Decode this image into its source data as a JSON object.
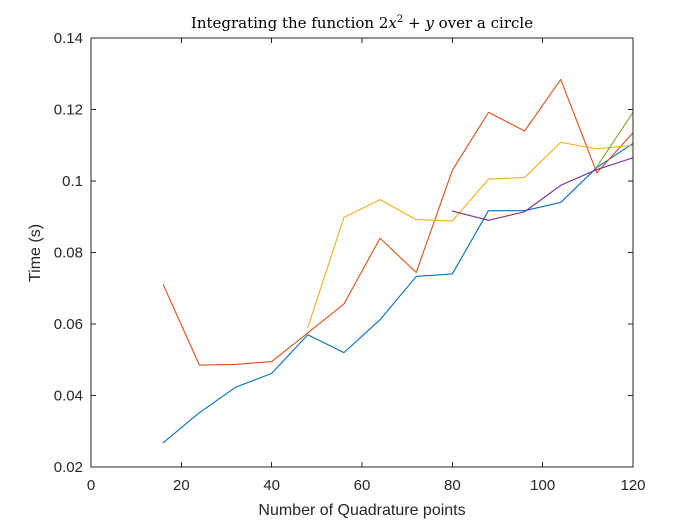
{
  "chart_data": {
    "type": "line",
    "title_parts": {
      "prefix": "Integrating the function ",
      "coef": "2",
      "var1": "x",
      "exp": "2",
      "op": " + ",
      "var2": "y",
      "suffix": " over a circle"
    },
    "xlabel": "Number of Quadrature points",
    "ylabel": "Time (s)",
    "xlim": [
      0,
      120
    ],
    "ylim": [
      0.02,
      0.14
    ],
    "xticks": [
      0,
      20,
      40,
      60,
      80,
      100,
      120
    ],
    "xtick_labels": [
      "0",
      "20",
      "40",
      "60",
      "80",
      "100",
      "120"
    ],
    "yticks": [
      0.02,
      0.04,
      0.06,
      0.08,
      0.1,
      0.12,
      0.14
    ],
    "ytick_labels": [
      "0.02",
      "0.04",
      "0.06",
      "0.08",
      "0.1",
      "0.12",
      "0.14"
    ],
    "grid": false,
    "series": [
      {
        "color": "#0072bd",
        "x": [
          16,
          24,
          32,
          40,
          48,
          56,
          64,
          72,
          80,
          88,
          96,
          104,
          112,
          120
        ],
        "y": [
          0.0268,
          0.0352,
          0.0423,
          0.0462,
          0.057,
          0.052,
          0.0612,
          0.0733,
          0.074,
          0.0917,
          0.0917,
          0.094,
          0.1038,
          0.1105
        ]
      },
      {
        "color": "#d95319",
        "x": [
          16,
          24,
          32,
          40,
          48,
          56,
          64,
          72,
          80,
          88,
          96,
          104,
          112,
          120
        ],
        "y": [
          0.071,
          0.0485,
          0.0487,
          0.0495,
          0.0575,
          0.0656,
          0.084,
          0.0744,
          0.103,
          0.1192,
          0.114,
          0.1284,
          0.1023,
          0.1135
        ]
      },
      {
        "color": "#edb120",
        "x": [
          48,
          56,
          64,
          72,
          80,
          88,
          96,
          104,
          112,
          120
        ],
        "y": [
          0.059,
          0.0898,
          0.0948,
          0.0892,
          0.0888,
          0.1005,
          0.101,
          0.1108,
          0.109,
          0.11
        ]
      },
      {
        "color": "#7e2f8e",
        "x": [
          80,
          88,
          96,
          104,
          112,
          120
        ],
        "y": [
          0.0916,
          0.089,
          0.0914,
          0.0988,
          0.1032,
          0.1065
        ]
      },
      {
        "color": "#77ac30",
        "x": [
          112,
          120
        ],
        "y": [
          0.104,
          0.1192
        ]
      }
    ]
  }
}
